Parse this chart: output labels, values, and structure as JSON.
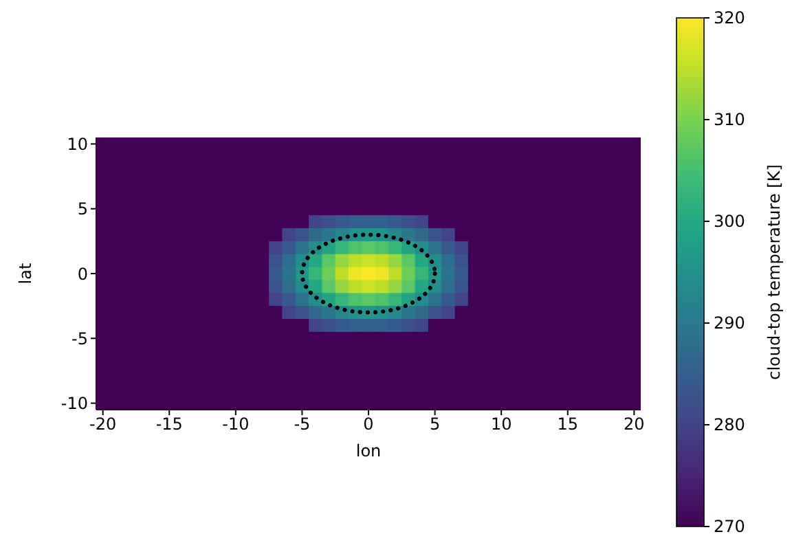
{
  "chart_data": {
    "type": "heatmap",
    "xlabel": "lon",
    "ylabel": "lat",
    "clabel": "cloud-top temperature [K]",
    "x": [
      -20,
      -19,
      -18,
      -17,
      -16,
      -15,
      -14,
      -13,
      -12,
      -11,
      -10,
      -9,
      -8,
      -7,
      -6,
      -5,
      -4,
      -3,
      -2,
      -1,
      0,
      1,
      2,
      3,
      4,
      5,
      6,
      7,
      8,
      9,
      10,
      11,
      12,
      13,
      14,
      15,
      16,
      17,
      18,
      19,
      20
    ],
    "y_categories": [
      "10",
      null,
      null,
      null,
      null,
      "5",
      null,
      null,
      null,
      null,
      "0",
      null,
      null,
      null,
      null,
      "-5",
      null,
      null,
      null,
      null,
      "-10"
    ],
    "cells": [
      [
        270,
        270,
        270,
        270,
        270,
        270,
        270,
        270,
        270,
        270,
        270,
        270,
        270,
        270,
        270,
        270,
        270,
        270,
        270,
        270,
        270,
        270,
        270,
        270,
        270,
        270,
        270,
        270,
        270,
        270,
        270,
        270,
        270,
        270,
        270,
        270,
        270,
        270,
        270,
        270,
        270
      ],
      [
        270,
        270,
        270,
        270,
        270,
        270,
        270,
        270,
        270,
        270,
        270,
        270,
        270,
        270,
        270,
        270,
        270,
        270,
        270,
        270,
        270,
        270,
        270,
        270,
        270,
        270,
        270,
        270,
        270,
        270,
        270,
        270,
        270,
        270,
        270,
        270,
        270,
        270,
        270,
        270,
        270
      ],
      [
        270,
        270,
        270,
        270,
        270,
        270,
        270,
        270,
        270,
        270,
        270,
        270,
        270,
        270,
        270,
        270,
        270,
        270,
        270,
        270,
        270,
        270,
        270,
        270,
        270,
        270,
        270,
        270,
        270,
        270,
        270,
        270,
        270,
        270,
        270,
        270,
        270,
        270,
        270,
        270,
        270
      ],
      [
        270,
        270,
        270,
        270,
        270,
        270,
        270,
        270,
        270,
        270,
        270,
        270,
        270,
        270,
        270,
        270,
        270,
        270,
        270,
        270,
        270,
        270,
        270,
        270,
        270,
        270,
        270,
        270,
        270,
        270,
        270,
        270,
        270,
        270,
        270,
        270,
        270,
        270,
        270,
        270,
        270
      ],
      [
        270,
        270,
        270,
        270,
        270,
        270,
        270,
        270,
        270,
        270,
        270,
        270,
        270,
        270,
        270,
        270,
        270,
        270,
        270,
        270,
        270,
        270,
        270,
        270,
        270,
        270,
        270,
        270,
        270,
        270,
        270,
        270,
        270,
        270,
        270,
        270,
        270,
        270,
        270,
        270,
        270
      ],
      [
        270,
        270,
        270,
        270,
        270,
        270,
        270,
        270,
        270,
        270,
        270,
        270,
        270,
        270,
        270,
        270,
        270,
        270,
        270,
        270,
        270,
        270,
        270,
        270,
        270,
        270,
        270,
        270,
        270,
        270,
        270,
        270,
        270,
        270,
        270,
        270,
        270,
        270,
        270,
        270,
        270
      ],
      [
        270,
        270,
        270,
        270,
        270,
        270,
        270,
        270,
        270,
        270,
        270,
        270,
        270,
        270,
        270,
        270,
        280,
        282,
        284,
        285,
        285,
        285,
        284,
        282,
        280,
        270,
        270,
        270,
        270,
        270,
        270,
        270,
        270,
        270,
        270,
        270,
        270,
        270,
        270,
        270,
        270
      ],
      [
        270,
        270,
        270,
        270,
        270,
        270,
        270,
        270,
        270,
        270,
        270,
        270,
        270,
        270,
        280,
        283,
        287,
        290,
        293,
        295,
        296,
        295,
        293,
        290,
        287,
        283,
        280,
        270,
        270,
        270,
        270,
        270,
        270,
        270,
        270,
        270,
        270,
        270,
        270,
        270,
        270
      ],
      [
        270,
        270,
        270,
        270,
        270,
        270,
        270,
        270,
        270,
        270,
        270,
        270,
        270,
        280,
        284,
        289,
        294,
        299,
        303,
        306,
        307,
        306,
        303,
        299,
        294,
        289,
        284,
        280,
        270,
        270,
        270,
        270,
        270,
        270,
        270,
        270,
        270,
        270,
        270,
        270,
        270
      ],
      [
        270,
        270,
        270,
        270,
        270,
        270,
        270,
        270,
        270,
        270,
        270,
        270,
        270,
        283,
        288,
        294,
        300,
        307,
        312,
        315,
        316,
        315,
        312,
        307,
        300,
        294,
        288,
        283,
        270,
        270,
        270,
        270,
        270,
        270,
        270,
        270,
        270,
        270,
        270,
        270,
        270
      ],
      [
        270,
        270,
        270,
        270,
        270,
        270,
        270,
        270,
        270,
        270,
        270,
        270,
        270,
        284,
        289,
        296,
        303,
        309,
        315,
        319,
        320,
        319,
        315,
        309,
        303,
        296,
        289,
        284,
        270,
        270,
        270,
        270,
        270,
        270,
        270,
        270,
        270,
        270,
        270,
        270,
        270
      ],
      [
        270,
        270,
        270,
        270,
        270,
        270,
        270,
        270,
        270,
        270,
        270,
        270,
        270,
        283,
        288,
        294,
        300,
        307,
        312,
        315,
        316,
        315,
        312,
        307,
        300,
        294,
        288,
        283,
        270,
        270,
        270,
        270,
        270,
        270,
        270,
        270,
        270,
        270,
        270,
        270,
        270
      ],
      [
        270,
        270,
        270,
        270,
        270,
        270,
        270,
        270,
        270,
        270,
        270,
        270,
        270,
        280,
        284,
        289,
        294,
        299,
        303,
        306,
        307,
        306,
        303,
        299,
        294,
        289,
        284,
        280,
        270,
        270,
        270,
        270,
        270,
        270,
        270,
        270,
        270,
        270,
        270,
        270,
        270
      ],
      [
        270,
        270,
        270,
        270,
        270,
        270,
        270,
        270,
        270,
        270,
        270,
        270,
        270,
        270,
        280,
        283,
        287,
        290,
        293,
        295,
        296,
        295,
        293,
        290,
        287,
        283,
        280,
        270,
        270,
        270,
        270,
        270,
        270,
        270,
        270,
        270,
        270,
        270,
        270,
        270,
        270
      ],
      [
        270,
        270,
        270,
        270,
        270,
        270,
        270,
        270,
        270,
        270,
        270,
        270,
        270,
        270,
        270,
        270,
        280,
        282,
        284,
        285,
        285,
        285,
        284,
        282,
        280,
        270,
        270,
        270,
        270,
        270,
        270,
        270,
        270,
        270,
        270,
        270,
        270,
        270,
        270,
        270,
        270
      ],
      [
        270,
        270,
        270,
        270,
        270,
        270,
        270,
        270,
        270,
        270,
        270,
        270,
        270,
        270,
        270,
        270,
        270,
        270,
        270,
        270,
        270,
        270,
        270,
        270,
        270,
        270,
        270,
        270,
        270,
        270,
        270,
        270,
        270,
        270,
        270,
        270,
        270,
        270,
        270,
        270,
        270
      ],
      [
        270,
        270,
        270,
        270,
        270,
        270,
        270,
        270,
        270,
        270,
        270,
        270,
        270,
        270,
        270,
        270,
        270,
        270,
        270,
        270,
        270,
        270,
        270,
        270,
        270,
        270,
        270,
        270,
        270,
        270,
        270,
        270,
        270,
        270,
        270,
        270,
        270,
        270,
        270,
        270,
        270
      ],
      [
        270,
        270,
        270,
        270,
        270,
        270,
        270,
        270,
        270,
        270,
        270,
        270,
        270,
        270,
        270,
        270,
        270,
        270,
        270,
        270,
        270,
        270,
        270,
        270,
        270,
        270,
        270,
        270,
        270,
        270,
        270,
        270,
        270,
        270,
        270,
        270,
        270,
        270,
        270,
        270,
        270
      ],
      [
        270,
        270,
        270,
        270,
        270,
        270,
        270,
        270,
        270,
        270,
        270,
        270,
        270,
        270,
        270,
        270,
        270,
        270,
        270,
        270,
        270,
        270,
        270,
        270,
        270,
        270,
        270,
        270,
        270,
        270,
        270,
        270,
        270,
        270,
        270,
        270,
        270,
        270,
        270,
        270,
        270
      ],
      [
        270,
        270,
        270,
        270,
        270,
        270,
        270,
        270,
        270,
        270,
        270,
        270,
        270,
        270,
        270,
        270,
        270,
        270,
        270,
        270,
        270,
        270,
        270,
        270,
        270,
        270,
        270,
        270,
        270,
        270,
        270,
        270,
        270,
        270,
        270,
        270,
        270,
        270,
        270,
        270,
        270
      ],
      [
        270,
        270,
        270,
        270,
        270,
        270,
        270,
        270,
        270,
        270,
        270,
        270,
        270,
        270,
        270,
        270,
        270,
        270,
        270,
        270,
        270,
        270,
        270,
        270,
        270,
        270,
        270,
        270,
        270,
        270,
        270,
        270,
        270,
        270,
        270,
        270,
        270,
        270,
        270,
        270,
        270
      ]
    ],
    "xlim": [
      -20.5,
      20.5
    ],
    "xticks": [
      -20,
      -15,
      -10,
      -5,
      0,
      5,
      10,
      15,
      20
    ],
    "clim": [
      270,
      320
    ],
    "cticks": [
      270,
      280,
      290,
      300,
      310,
      320
    ],
    "grid": false,
    "legend": false
  }
}
